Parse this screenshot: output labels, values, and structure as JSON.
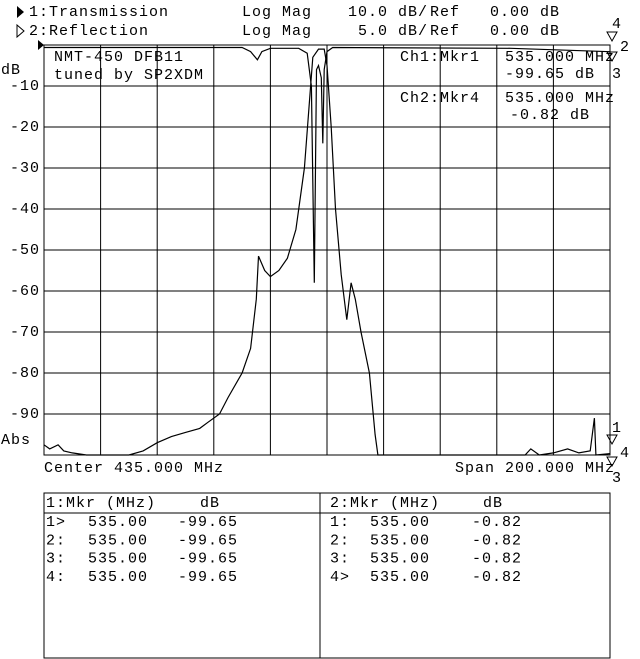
{
  "header": {
    "rows": [
      {
        "scale": "Log Mag",
        "per_div": "10.0 dB/",
        "ref_label": "Ref",
        "ref": "0.00 dB"
      },
      {
        "scale": "Log Mag",
        "per_div": "5.0 dB/",
        "ref_label": "Ref",
        "ref": "0.00 dB"
      }
    ]
  },
  "chart_data": {
    "type": "line",
    "y_label": "dB",
    "y_label_bottom": "Abs",
    "x_label_left": "Center 435.000 MHz",
    "x_label_right": "Span 200.000 MHz",
    "notes": [
      "NMT-450 DFB11",
      "tuned by SP2XDM"
    ],
    "marker_readouts": [
      {
        "label": "Ch1:Mkr1",
        "freq": "535.000 MHz",
        "value": "-99.65 dB"
      },
      {
        "label": "Ch2:Mkr4",
        "freq": "535.000 MHz",
        "value": "-0.82 dB"
      }
    ],
    "right_markers_top": [
      "4",
      "2",
      "3"
    ],
    "right_markers_bottom": [
      "1",
      "4",
      "3"
    ],
    "xlim": [
      335,
      535
    ],
    "xticks": [
      335,
      355,
      375,
      395,
      415,
      435,
      455,
      475,
      495,
      515,
      535
    ],
    "ylim": [
      -100,
      0
    ],
    "yticks": [
      -10,
      -20,
      -30,
      -40,
      -50,
      -60,
      -70,
      -80,
      -90
    ],
    "y2lim": [
      -50,
      0
    ],
    "grid": true,
    "series": [
      {
        "name": "1:Transmission",
        "color": "#000000",
        "x": [
          335,
          337,
          340,
          342,
          345,
          350,
          365,
          370,
          375,
          380,
          385,
          390,
          393,
          397,
          400,
          405,
          408,
          410,
          410.8,
          413,
          415,
          418,
          421,
          424,
          427,
          429,
          430,
          432,
          434,
          435,
          436.5,
          438,
          440,
          442,
          443.5,
          445,
          447,
          450,
          452,
          453,
          490,
          505,
          507,
          510,
          515,
          520,
          524,
          528,
          529.5,
          530,
          535
        ],
        "values": [
          -97.5,
          -98.5,
          -97.5,
          -99,
          -99.5,
          -100,
          -100,
          -99,
          -97,
          -95.5,
          -94.5,
          -93.5,
          -92,
          -90,
          -86,
          -80,
          -74,
          -62,
          -51.5,
          -55,
          -56.5,
          -55,
          -52,
          -45,
          -30,
          -12,
          -3,
          -1,
          -1,
          -5,
          -20,
          -40,
          -56,
          -67,
          -58,
          -62,
          -70,
          -80,
          -95,
          -100,
          -100,
          -100,
          -98.5,
          -100,
          -99.5,
          -98.5,
          -99.5,
          -99,
          -91,
          -100,
          -99.65
        ]
      },
      {
        "name": "2:Reflection",
        "color": "#000000",
        "axis": "y2",
        "x": [
          335,
          370,
          405,
          408,
          410.4,
          412,
          415,
          425,
          428,
          429.5,
          430.5,
          431.3,
          432,
          433,
          433.5,
          434,
          435,
          437,
          500,
          535
        ],
        "values": [
          -0.3,
          -0.3,
          -0.3,
          -0.8,
          -1.8,
          -0.8,
          -0.4,
          -0.4,
          -1,
          -5,
          -29,
          -3,
          -2.5,
          -4,
          -12,
          -3,
          -0.8,
          -0.3,
          -0.4,
          -0.82
        ]
      }
    ]
  },
  "marker_tables": [
    {
      "headers": [
        "1:Mkr (MHz)",
        "dB"
      ],
      "rows": [
        [
          "1>",
          "535.00",
          "-99.65"
        ],
        [
          "2:",
          "535.00",
          "-99.65"
        ],
        [
          "3:",
          "535.00",
          "-99.65"
        ],
        [
          "4:",
          "535.00",
          "-99.65"
        ]
      ]
    },
    {
      "headers": [
        "2:Mkr (MHz)",
        "dB"
      ],
      "rows": [
        [
          "1:",
          "535.00",
          "-0.82"
        ],
        [
          "2:",
          "535.00",
          "-0.82"
        ],
        [
          "3:",
          "535.00",
          "-0.82"
        ],
        [
          "4>",
          "535.00",
          "-0.82"
        ]
      ]
    }
  ]
}
